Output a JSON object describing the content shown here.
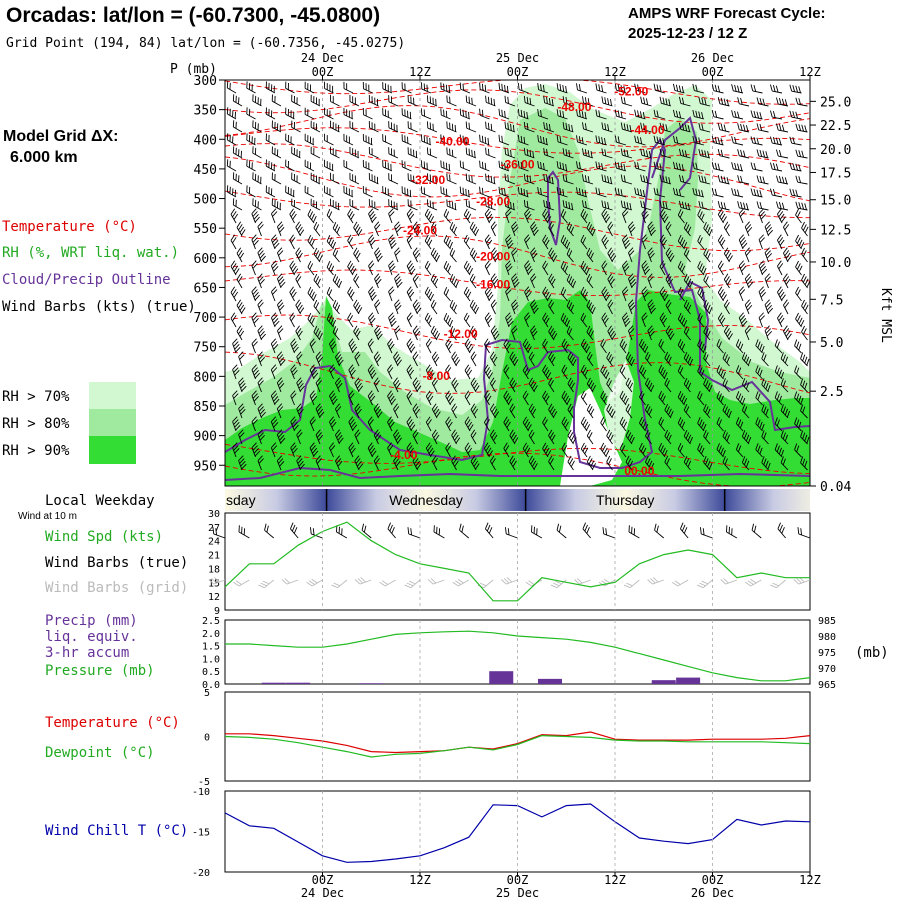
{
  "header": {
    "title": "Orcadas:  lat/lon = (-60.7300, -45.0800)",
    "subtitle": "Grid Point (194, 84) lat/lon = (-60.7356, -45.0275)",
    "cycle_label": "AMPS WRF Forecast Cycle:",
    "cycle_value": "2025-12-23 / 12  Z"
  },
  "legend": {
    "model_grid": "Model Grid ΔX:",
    "grid_value": "6.000 km",
    "temperature": "Temperature (°C)",
    "rh": "RH (%, WRT liq. wat.)",
    "cloud": "Cloud/Precip Outline",
    "wind": "Wind Barbs (kts) (true)",
    "rh70": "RH > 70%",
    "rh80": "RH > 80%",
    "rh90": "RH > 90%"
  },
  "colors": {
    "rh70": "#d2f8d2",
    "rh80": "#a0eaa0",
    "rh90": "#33dd33",
    "temp": "#ee0000",
    "cloud": "#663399",
    "wind_spd": "#22bb22",
    "precip": "#663399",
    "pressure": "#22bb22",
    "temperature": "#dd0000",
    "dewpoint": "#22bb22",
    "windchill": "#0000aa",
    "grid_barb": "#bbbbbb"
  },
  "time_axis": {
    "ticks": [
      "00Z",
      "12Z",
      "00Z",
      "12Z",
      "00Z",
      "12Z"
    ],
    "tick_hours": [
      12,
      24,
      36,
      48,
      60,
      72
    ],
    "days": [
      "24 Dec",
      "25 Dec",
      "26 Dec"
    ],
    "day_hours": [
      12,
      36,
      60
    ],
    "start_hour": 0,
    "end_hour": 72
  },
  "weekday": {
    "label": "Local Weekday",
    "sub": "Wind at 10 m",
    "names": [
      "sday",
      "Wednesday",
      "Thursday"
    ]
  },
  "chart_data": [
    {
      "name": "cross-section",
      "type": "heatmap",
      "ylabel": "P (mb)",
      "y2label": "Kft MSL",
      "pressure_ticks": [
        300,
        350,
        400,
        450,
        500,
        550,
        600,
        650,
        700,
        750,
        800,
        850,
        900,
        950
      ],
      "pressure_range": [
        300,
        985
      ],
      "height_ticks": [
        "25.0",
        "22.5",
        "20.0",
        "17.5",
        "15.0",
        "12.5",
        "10.0",
        "7.5",
        "5.0",
        "2.5",
        "0.04"
      ],
      "height_tick_pressures": [
        336,
        376,
        416,
        456,
        502,
        552,
        607,
        670,
        742,
        825,
        985
      ],
      "isotherms": [
        {
          "label": "-52.00",
          "hour": 50,
          "p": 318
        },
        {
          "label": "-48.00",
          "hour": 43,
          "p": 344
        },
        {
          "label": "-44.00",
          "hour": 52,
          "p": 383
        },
        {
          "label": "-40.00",
          "hour": 28,
          "p": 402
        },
        {
          "label": "-36.00",
          "hour": 36,
          "p": 441
        },
        {
          "label": "-32.00",
          "hour": 25,
          "p": 467
        },
        {
          "label": "-28.00",
          "hour": 33,
          "p": 503
        },
        {
          "label": "-24.00",
          "hour": 24,
          "p": 552
        },
        {
          "label": "-20.00",
          "hour": 33,
          "p": 596
        },
        {
          "label": "-16.00",
          "hour": 33,
          "p": 643
        },
        {
          "label": "-12.00",
          "hour": 29,
          "p": 727
        },
        {
          "label": "-8.00",
          "hour": 26,
          "p": 798
        },
        {
          "label": "-4.00",
          "hour": 22,
          "p": 931
        },
        {
          "label": "00.00",
          "hour": 51,
          "p": 958
        }
      ]
    },
    {
      "name": "wind-speed",
      "type": "line",
      "title": "Wind Spd (kts)",
      "label2": "Wind Barbs (true)",
      "label3": "Wind Barbs (grid)",
      "ylim": [
        9,
        30
      ],
      "yticks": [
        9,
        12,
        15,
        18,
        21,
        24,
        27,
        30
      ],
      "hours": [
        0,
        3,
        6,
        9,
        12,
        15,
        18,
        21,
        24,
        27,
        30,
        33,
        36,
        39,
        42,
        45,
        48,
        51,
        54,
        57,
        60,
        63,
        66,
        69,
        72
      ],
      "values": [
        14,
        19,
        19,
        23,
        26,
        28,
        24,
        21,
        19,
        18,
        17,
        11,
        11,
        16,
        15,
        14,
        15,
        19,
        21,
        22,
        21,
        16,
        17,
        16,
        16
      ]
    },
    {
      "name": "precip-pressure",
      "type": "bar",
      "title": "Precip (mm)",
      "sub1": "liq. equiv.",
      "sub2": "3-hr accum",
      "pressure_label": "Pressure (mb)",
      "y2unit": "(mb)",
      "ylim": [
        0,
        2.5
      ],
      "yticks": [
        "0.0",
        "0.5",
        "1.0",
        "1.5",
        "2.0",
        "2.5"
      ],
      "y2lim": [
        965,
        985
      ],
      "y2ticks": [
        "965",
        "970",
        "975",
        "980",
        "985"
      ],
      "precip_hours": [
        6,
        9,
        18,
        34,
        40,
        54,
        57
      ],
      "precip_values": [
        0.05,
        0.05,
        0.03,
        0.5,
        0.2,
        0.15,
        0.25
      ],
      "pressure_hours": [
        0,
        3,
        6,
        9,
        12,
        15,
        18,
        21,
        24,
        27,
        30,
        33,
        36,
        39,
        42,
        45,
        48,
        51,
        54,
        57,
        60,
        63,
        66,
        69,
        72
      ],
      "pressure_values": [
        977.5,
        977.5,
        977.0,
        976.5,
        976.5,
        977.5,
        979.0,
        980.5,
        981.0,
        981.3,
        981.5,
        981.0,
        980.0,
        979.5,
        979.0,
        978.0,
        976.5,
        974.5,
        972.5,
        970.5,
        968.5,
        967.0,
        966.0,
        966.0,
        967.0
      ]
    },
    {
      "name": "temperature-dewpoint",
      "type": "line",
      "title": "Temperature (°C)",
      "title2": "Dewpoint (°C)",
      "ylim": [
        -5,
        5
      ],
      "yticks": [
        5,
        0,
        -5
      ],
      "hours": [
        0,
        3,
        6,
        9,
        12,
        15,
        18,
        21,
        24,
        27,
        30,
        33,
        36,
        39,
        42,
        45,
        48,
        51,
        54,
        57,
        60,
        63,
        66,
        69,
        72
      ],
      "temperature": [
        0.3,
        0.3,
        0.1,
        -0.2,
        -0.5,
        -1.0,
        -1.7,
        -1.8,
        -1.7,
        -1.6,
        -1.2,
        -1.4,
        -0.8,
        0.2,
        0.1,
        0.5,
        -0.3,
        -0.4,
        -0.4,
        -0.4,
        -0.3,
        -0.3,
        -0.3,
        -0.2,
        0.1
      ],
      "dewpoint": [
        0.0,
        -0.1,
        -0.3,
        -0.7,
        -1.2,
        -1.7,
        -2.3,
        -2.0,
        -1.9,
        -1.6,
        -1.2,
        -1.5,
        -0.9,
        0.1,
        0.0,
        -0.1,
        -0.4,
        -0.5,
        -0.5,
        -0.6,
        -0.6,
        -0.6,
        -0.6,
        -0.7,
        -0.8
      ]
    },
    {
      "name": "wind-chill",
      "type": "line",
      "title": "Wind Chill T (°C)",
      "ylim": [
        -20,
        -10
      ],
      "yticks": [
        -10,
        -15,
        -20
      ],
      "hours": [
        0,
        3,
        6,
        9,
        12,
        15,
        18,
        21,
        24,
        27,
        30,
        33,
        36,
        39,
        42,
        45,
        48,
        51,
        54,
        57,
        60,
        63,
        66,
        69,
        72
      ],
      "values": [
        -12.7,
        -14.3,
        -14.6,
        -16.3,
        -18.0,
        -18.8,
        -18.7,
        -18.4,
        -18.0,
        -17.0,
        -15.7,
        -11.7,
        -11.8,
        -13.2,
        -11.8,
        -11.6,
        -13.8,
        -15.8,
        -16.2,
        -16.5,
        -16.0,
        -13.5,
        -14.2,
        -13.7,
        -13.8
      ]
    }
  ]
}
